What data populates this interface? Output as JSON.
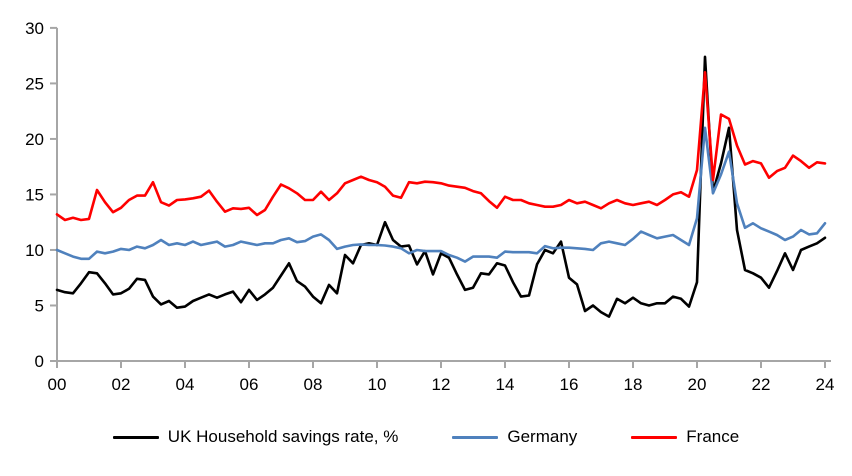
{
  "chart_data": {
    "type": "line",
    "title": "",
    "xlabel": "",
    "ylabel": "",
    "x_unit": "quarterly",
    "x_range": [
      "2000-Q1",
      "2024-Q1"
    ],
    "x_tick_labels": [
      "00",
      "02",
      "04",
      "06",
      "08",
      "10",
      "12",
      "14",
      "16",
      "18",
      "20",
      "22",
      "24"
    ],
    "y_tick_labels": [
      "0",
      "5",
      "10",
      "15",
      "20",
      "25",
      "30"
    ],
    "ylim": [
      0,
      30
    ],
    "grid": false,
    "legend_position": "bottom",
    "axis_color": "#A6A6A6",
    "text_color": "#000000",
    "series": [
      {
        "name": "UK Household savings rate, %",
        "color": "#000000",
        "values": [
          6.4,
          6.2,
          6.1,
          7.0,
          8.0,
          7.9,
          7.0,
          6.0,
          6.1,
          6.5,
          7.4,
          7.3,
          5.8,
          5.1,
          5.4,
          4.8,
          4.9,
          5.4,
          5.7,
          6.0,
          5.7,
          6.0,
          6.25,
          5.3,
          6.4,
          5.5,
          6.0,
          6.6,
          7.7,
          8.8,
          7.2,
          6.7,
          5.8,
          5.2,
          6.85,
          6.1,
          9.55,
          8.8,
          10.45,
          10.6,
          10.45,
          12.5,
          10.9,
          10.3,
          10.4,
          8.7,
          9.9,
          7.8,
          9.7,
          9.3,
          7.8,
          6.4,
          6.6,
          7.9,
          7.8,
          8.8,
          8.6,
          7.1,
          5.8,
          5.9,
          8.7,
          10.0,
          9.7,
          10.75,
          7.5,
          6.9,
          4.5,
          5.0,
          4.4,
          4.0,
          5.6,
          5.2,
          5.7,
          5.2,
          5.0,
          5.2,
          5.2,
          5.8,
          5.6,
          4.9,
          7.1,
          27.4,
          15.2,
          17.8,
          21.0,
          11.8,
          8.2,
          7.9,
          7.5,
          6.6,
          8.1,
          9.7,
          8.2,
          10.0,
          10.3,
          10.6,
          11.1
        ]
      },
      {
        "name": "Germany",
        "color": "#4F81BD",
        "values": [
          10.0,
          9.7,
          9.4,
          9.2,
          9.2,
          9.85,
          9.7,
          9.85,
          10.1,
          10.0,
          10.3,
          10.15,
          10.45,
          10.9,
          10.45,
          10.6,
          10.45,
          10.75,
          10.45,
          10.6,
          10.75,
          10.3,
          10.45,
          10.75,
          10.6,
          10.45,
          10.6,
          10.6,
          10.9,
          11.05,
          10.7,
          10.8,
          11.2,
          11.4,
          10.9,
          10.1,
          10.3,
          10.45,
          10.5,
          10.45,
          10.45,
          10.4,
          10.3,
          10.15,
          9.7,
          10.0,
          9.9,
          9.9,
          9.9,
          9.55,
          9.3,
          8.95,
          9.4,
          9.4,
          9.4,
          9.3,
          9.85,
          9.8,
          9.8,
          9.8,
          9.7,
          10.35,
          10.15,
          10.2,
          10.2,
          10.15,
          10.1,
          10.0,
          10.6,
          10.75,
          10.6,
          10.45,
          11.0,
          11.65,
          11.35,
          11.05,
          11.2,
          11.35,
          10.9,
          10.45,
          12.85,
          21.0,
          15.1,
          16.8,
          18.85,
          14.2,
          12.0,
          12.4,
          11.95,
          11.65,
          11.35,
          10.9,
          11.2,
          11.8,
          11.4,
          11.5,
          12.4
        ]
      },
      {
        "name": "France",
        "color": "#FF0000",
        "values": [
          13.2,
          12.7,
          12.9,
          12.7,
          12.8,
          15.4,
          14.3,
          13.4,
          13.8,
          14.5,
          14.9,
          14.9,
          16.1,
          14.3,
          14.0,
          14.5,
          14.55,
          14.65,
          14.8,
          15.35,
          14.35,
          13.45,
          13.75,
          13.7,
          13.8,
          13.15,
          13.6,
          14.8,
          15.9,
          15.55,
          15.1,
          14.5,
          14.5,
          15.25,
          14.5,
          15.1,
          16.0,
          16.3,
          16.6,
          16.3,
          16.1,
          15.7,
          14.9,
          14.7,
          16.1,
          16.0,
          16.15,
          16.1,
          16.0,
          15.8,
          15.7,
          15.6,
          15.3,
          15.1,
          14.4,
          13.8,
          14.8,
          14.5,
          14.5,
          14.2,
          14.05,
          13.9,
          13.9,
          14.05,
          14.5,
          14.2,
          14.35,
          14.05,
          13.75,
          14.2,
          14.5,
          14.2,
          14.05,
          14.2,
          14.35,
          14.05,
          14.5,
          15.0,
          15.2,
          14.8,
          17.2,
          26.0,
          16.3,
          22.2,
          21.8,
          19.4,
          17.7,
          18.0,
          17.8,
          16.5,
          17.1,
          17.4,
          18.5,
          18.0,
          17.4,
          17.9,
          17.8
        ]
      }
    ]
  }
}
